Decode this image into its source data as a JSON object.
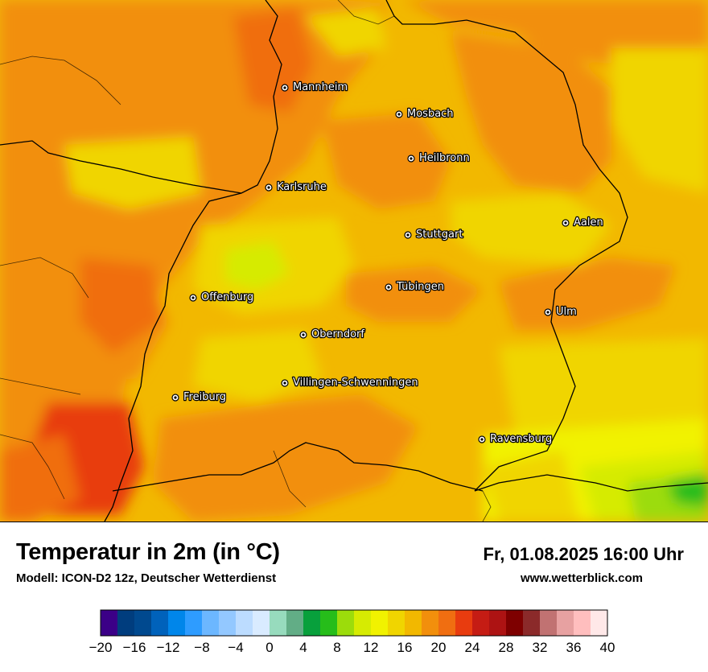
{
  "map": {
    "cities": [
      {
        "name": "Mannheim"
      },
      {
        "name": "Mosbach"
      },
      {
        "name": "Heilbronn"
      },
      {
        "name": "Karlsruhe"
      },
      {
        "name": "Stuttgart"
      },
      {
        "name": "Aalen"
      },
      {
        "name": "Tübingen"
      },
      {
        "name": "Offenburg"
      },
      {
        "name": "Ulm"
      },
      {
        "name": "Oberndorf"
      },
      {
        "name": "Villingen-Schwenningen"
      },
      {
        "name": "Freiburg"
      },
      {
        "name": "Ravensburg"
      }
    ]
  },
  "footer": {
    "title": "Temperatur in 2m (in °C)",
    "model": "Modell: ICON-D2 12z, Deutscher Wetterdienst",
    "datetime": "Fr, 01.08.2025 16:00 Uhr",
    "website": "www.wetterblick.com"
  },
  "colorbar": {
    "min": -20,
    "max": 40,
    "step": 2,
    "tick_labels": [
      "−20",
      "−16",
      "−12",
      "−8",
      "−4",
      "0",
      "4",
      "8",
      "12",
      "16",
      "20",
      "24",
      "28",
      "32",
      "36",
      "40"
    ],
    "colors": [
      "#3b0087",
      "#003d7e",
      "#00498f",
      "#0062bb",
      "#0086ea",
      "#2e9cff",
      "#6cb7ff",
      "#93c8ff",
      "#bcdcff",
      "#d9ebff",
      "#97dbbd",
      "#62ad86",
      "#08a03c",
      "#26bd1a",
      "#9cdc0b",
      "#d6eb02",
      "#f1f200",
      "#f0d500",
      "#f2b800",
      "#f28f0c",
      "#f06e11",
      "#e83c0f",
      "#c51c14",
      "#ad1313",
      "#7e0000",
      "#8b2a2a",
      "#c17272",
      "#e7a1a1",
      "#ffbebe",
      "#ffe8e8"
    ]
  }
}
